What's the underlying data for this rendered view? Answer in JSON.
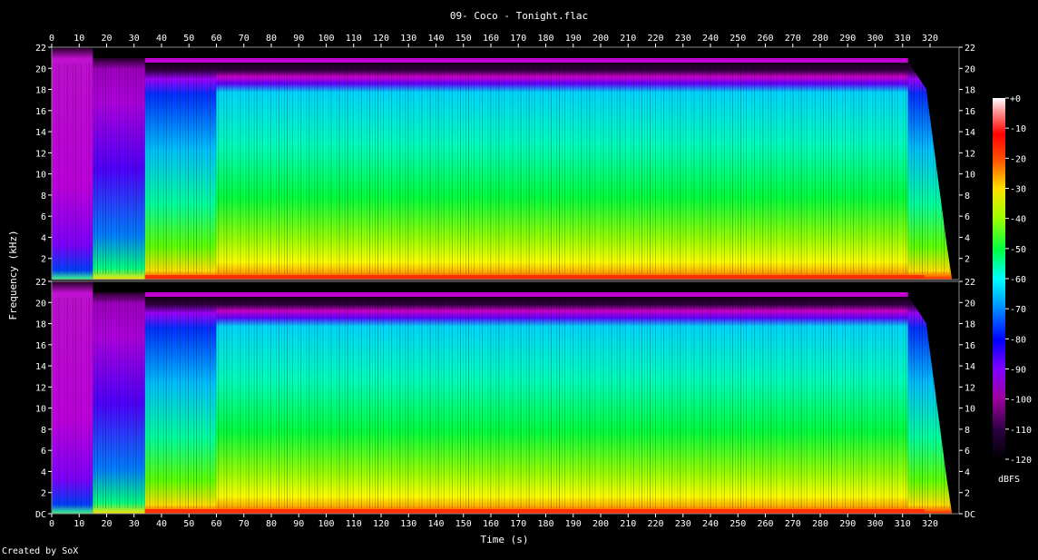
{
  "title": "09- Coco - Tonight.flac",
  "credit": "Created by SoX",
  "chart_data": {
    "type": "heatmap",
    "title": "09- Coco - Tonight.flac",
    "xlabel": "Time (s)",
    "ylabel": "Frequency (kHz)",
    "xlim": [
      0,
      330
    ],
    "ylim": [
      0,
      22
    ],
    "x_ticks": [
      "0",
      "10",
      "20",
      "30",
      "40",
      "50",
      "60",
      "70",
      "80",
      "90",
      "100",
      "110",
      "120",
      "130",
      "140",
      "150",
      "160",
      "170",
      "180",
      "190",
      "200",
      "210",
      "220",
      "230",
      "240",
      "250",
      "260",
      "270",
      "280",
      "290",
      "300",
      "310",
      "320"
    ],
    "y_ticks": [
      "DC",
      "2",
      "4",
      "6",
      "8",
      "10",
      "12",
      "14",
      "16",
      "18",
      "20",
      "22"
    ],
    "channels": 2,
    "colorbar": {
      "label": "dBFS",
      "ticks": [
        "+0",
        "-10",
        "-20",
        "-30",
        "-40",
        "-50",
        "-60",
        "-70",
        "-80",
        "-90",
        "-100",
        "-110",
        "-120"
      ],
      "range": [
        -120,
        0
      ],
      "colors": [
        "#000000",
        "#2a0040",
        "#700080",
        "#d000d0",
        "#7a00ff",
        "#0000ff",
        "#0090ff",
        "#00ffff",
        "#00ff80",
        "#00ff00",
        "#80ff00",
        "#ffff00",
        "#ffb000",
        "#ff6000",
        "#ff0000",
        "#ff8080",
        "#ffffff"
      ]
    },
    "segments": [
      {
        "x": [
          0,
          15
        ],
        "level": "very low (-100 to -110 dBFS)"
      },
      {
        "x": [
          15,
          34
        ],
        "level": "low, sparse (-80 to -100 dBFS)"
      },
      {
        "x": [
          34,
          60
        ],
        "level": "medium (-70 to -90 dBFS above 8 kHz)"
      },
      {
        "x": [
          60,
          312
        ],
        "level": "full (-50 to -70 dBFS, cutoff ~20 kHz)"
      },
      {
        "x": [
          312,
          328
        ],
        "level": "fade-out"
      }
    ]
  }
}
